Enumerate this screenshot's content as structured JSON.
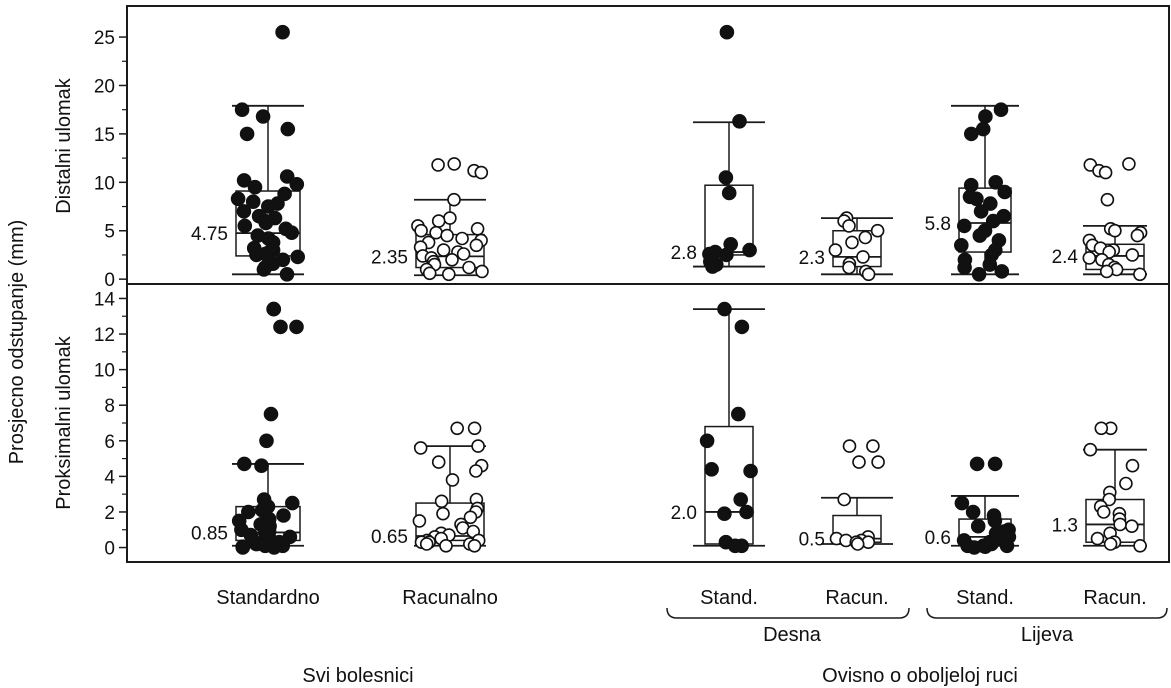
{
  "chart_data": {
    "type": "boxplot",
    "ylabel": "Prosjecno odstupanje (mm)",
    "groups": [
      {
        "label": "Standardno",
        "filled": true
      },
      {
        "label": "Racunalno",
        "filled": false
      },
      {
        "label": "Stand.",
        "filled": true
      },
      {
        "label": "Racun.",
        "filled": false
      },
      {
        "label": "Stand.",
        "filled": true
      },
      {
        "label": "Racun.",
        "filled": false
      }
    ],
    "subgroup_labels": [
      "Desna",
      "Lijeva"
    ],
    "section_labels": [
      "Svi bolesnici",
      "Ovisno o oboljeloj ruci"
    ],
    "panels": [
      {
        "ylabel": "Distalni ulomak",
        "ylim": [
          -0.5,
          28
        ],
        "yticks": [
          0,
          5,
          10,
          15,
          20,
          25
        ],
        "boxes": [
          {
            "whisker_low": 0.5,
            "q1": 2.4,
            "median": 4.75,
            "q3": 9.1,
            "whisker_high": 17.9,
            "median_label": "4.75",
            "points": [
              25.5,
              17.5,
              16.8,
              15.5,
              15.0,
              10.6,
              10.2,
              9.8,
              9.5,
              8.8,
              8.3,
              8.0,
              7.8,
              7.5,
              7.0,
              6.5,
              6.3,
              6.0,
              5.8,
              5.5,
              5.2,
              4.8,
              4.5,
              4.2,
              3.8,
              3.2,
              3.0,
              2.8,
              2.6,
              2.5,
              2.3,
              2.0,
              1.6,
              1.2,
              1.0,
              0.5
            ]
          },
          {
            "whisker_low": 0.4,
            "q1": 1.2,
            "median": 2.35,
            "q3": 4.6,
            "whisker_high": 8.2,
            "median_label": "2.35",
            "points": [
              11.9,
              11.8,
              11.2,
              11.0,
              8.2,
              6.3,
              6.0,
              5.5,
              5.2,
              5.0,
              4.8,
              4.5,
              4.2,
              4.0,
              3.8,
              3.5,
              3.3,
              3.0,
              2.8,
              2.6,
              2.4,
              2.2,
              2.0,
              1.8,
              1.5,
              1.2,
              1.0,
              0.8,
              0.6,
              0.5
            ]
          },
          {
            "whisker_low": 1.3,
            "q1": 2.5,
            "median": 2.8,
            "q3": 9.7,
            "whisker_high": 16.2,
            "median_label": "2.8",
            "points": [
              25.5,
              16.3,
              10.5,
              8.9,
              3.6,
              3.0,
              2.8,
              2.6,
              2.5,
              1.8,
              1.5,
              1.3
            ]
          },
          {
            "whisker_low": 0.5,
            "q1": 1.3,
            "median": 2.3,
            "q3": 5.0,
            "whisker_high": 6.3,
            "median_label": "2.3",
            "points": [
              6.3,
              6.0,
              5.5,
              5.0,
              4.3,
              3.8,
              3.0,
              2.3,
              1.6,
              1.2,
              0.8,
              0.5
            ]
          },
          {
            "whisker_low": 0.5,
            "q1": 2.8,
            "median": 5.8,
            "q3": 9.4,
            "whisker_high": 17.9,
            "median_label": "5.8",
            "points": [
              17.5,
              16.8,
              15.5,
              15.0,
              10.0,
              9.7,
              9.0,
              8.5,
              8.3,
              7.8,
              7.0,
              6.5,
              6.0,
              5.5,
              5.0,
              4.5,
              4.0,
              3.5,
              3.0,
              2.5,
              2.0,
              1.5,
              1.2,
              0.8,
              0.5
            ]
          },
          {
            "whisker_low": 0.5,
            "q1": 1.0,
            "median": 2.4,
            "q3": 3.6,
            "whisker_high": 5.5,
            "median_label": "2.4",
            "points": [
              11.9,
              11.8,
              11.2,
              11.0,
              8.2,
              5.2,
              5.0,
              4.8,
              4.5,
              4.0,
              3.5,
              3.2,
              3.0,
              2.8,
              2.5,
              2.2,
              2.0,
              1.5,
              1.2,
              1.0,
              0.8,
              0.5
            ]
          }
        ]
      },
      {
        "ylabel": "Proksimalni ulomak",
        "ylim": [
          -0.7,
          14.7
        ],
        "yticks": [
          0,
          2,
          4,
          6,
          8,
          10,
          12,
          14
        ],
        "boxes": [
          {
            "whisker_low": 0.1,
            "q1": 0.4,
            "median": 0.85,
            "q3": 2.3,
            "whisker_high": 4.7,
            "median_label": "0.85",
            "points": [
              13.4,
              13.4,
              12.4,
              12.4,
              7.5,
              6.0,
              4.7,
              4.6,
              2.7,
              2.5,
              2.3,
              2.1,
              2.0,
              1.8,
              1.6,
              1.5,
              1.3,
              1.2,
              1.0,
              0.9,
              0.8,
              0.7,
              0.6,
              0.5,
              0.4,
              0.3,
              0.3,
              0.2,
              0.2,
              0.1,
              0.1,
              0.1,
              0.05,
              0.0,
              0.0
            ]
          },
          {
            "whisker_low": 0.1,
            "q1": 0.4,
            "median": 0.65,
            "q3": 2.5,
            "whisker_high": 5.7,
            "median_label": "0.65",
            "points": [
              6.7,
              6.7,
              5.7,
              5.6,
              4.8,
              4.6,
              4.3,
              3.8,
              2.7,
              2.6,
              2.2,
              2.0,
              1.9,
              1.7,
              1.5,
              1.3,
              1.1,
              0.9,
              0.8,
              0.7,
              0.6,
              0.5,
              0.4,
              0.4,
              0.3,
              0.3,
              0.2,
              0.2,
              0.1,
              0.1
            ]
          },
          {
            "whisker_low": 0.1,
            "q1": 0.2,
            "median": 2.0,
            "q3": 6.8,
            "whisker_high": 13.4,
            "median_label": "2.0",
            "points": [
              13.4,
              12.4,
              7.5,
              6.0,
              4.4,
              4.3,
              2.7,
              2.0,
              1.9,
              0.3,
              0.1,
              0.1
            ]
          },
          {
            "whisker_low": 0.2,
            "q1": 0.3,
            "median": 0.5,
            "q3": 1.8,
            "whisker_high": 2.8,
            "median_label": "0.5",
            "points": [
              5.7,
              5.7,
              4.8,
              4.8,
              2.7,
              0.6,
              0.5,
              0.4,
              0.4,
              0.3,
              0.3,
              0.2
            ]
          },
          {
            "whisker_low": 0.1,
            "q1": 0.3,
            "median": 0.6,
            "q3": 1.6,
            "whisker_high": 2.9,
            "median_label": "0.6",
            "points": [
              4.7,
              4.7,
              2.5,
              2.0,
              1.8,
              1.5,
              1.2,
              1.0,
              0.9,
              0.8,
              0.6,
              0.5,
              0.4,
              0.4,
              0.3,
              0.2,
              0.2,
              0.1,
              0.1,
              0.1,
              0.05,
              0.0
            ]
          },
          {
            "whisker_low": 0.1,
            "q1": 0.3,
            "median": 1.3,
            "q3": 2.7,
            "whisker_high": 5.5,
            "median_label": "1.3",
            "points": [
              6.7,
              6.7,
              5.5,
              4.6,
              3.6,
              3.1,
              2.7,
              2.3,
              2.0,
              1.9,
              1.6,
              1.3,
              1.2,
              0.8,
              0.5,
              0.3,
              0.2,
              0.1
            ]
          }
        ]
      }
    ]
  }
}
